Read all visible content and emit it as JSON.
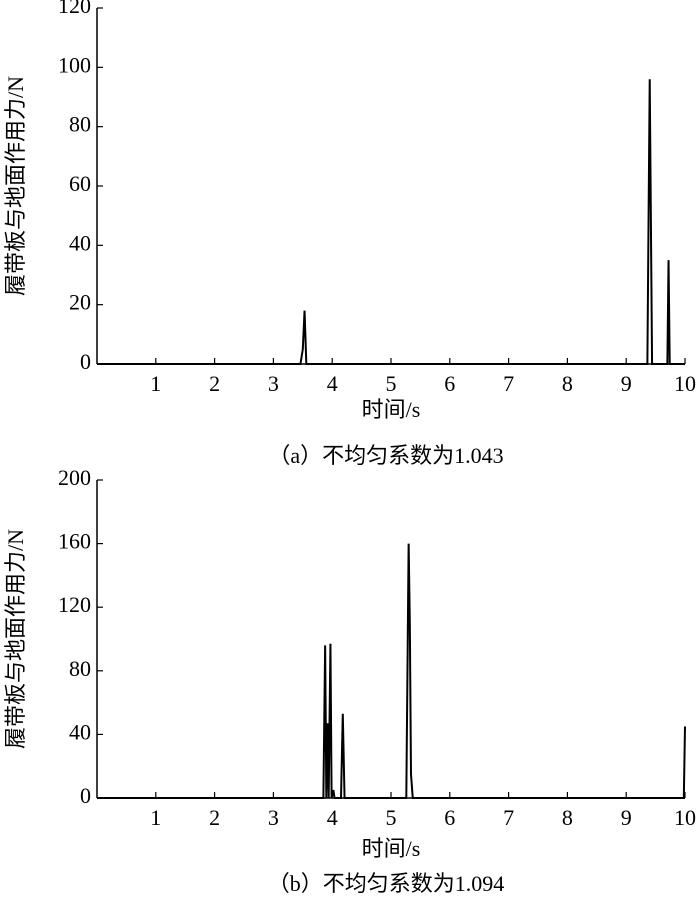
{
  "chart_data": [
    {
      "type": "line",
      "caption": "（a）不均匀系数为1.043",
      "x_label": "时间/s",
      "y_label": "履带板与地面作用力/N",
      "xlim": [
        0,
        10
      ],
      "xticks": [
        1,
        2,
        3,
        4,
        5,
        6,
        7,
        8,
        9,
        10
      ],
      "ylim": [
        0,
        120
      ],
      "yticks": [
        0,
        20,
        40,
        60,
        80,
        100,
        120
      ],
      "series": [
        {
          "color": "#000000",
          "x": [
            0,
            3.46,
            3.5,
            3.53,
            3.56,
            9.36,
            9.4,
            9.44,
            9.7,
            9.72,
            9.74,
            10
          ],
          "values": [
            0,
            0,
            5,
            18,
            0,
            0,
            96,
            0,
            0,
            35,
            0,
            0
          ]
        }
      ]
    },
    {
      "type": "line",
      "caption": "（b）不均匀系数为1.094",
      "x_label": "时间/s",
      "y_label": "履带板与地面作用力/N",
      "xlim": [
        0,
        10
      ],
      "xticks": [
        1,
        2,
        3,
        4,
        5,
        6,
        7,
        8,
        9,
        10
      ],
      "ylim": [
        0,
        200
      ],
      "yticks": [
        0,
        40,
        80,
        120,
        160,
        200
      ],
      "series": [
        {
          "color": "#000000",
          "x": [
            0,
            3.85,
            3.88,
            3.9,
            3.92,
            3.94,
            3.97,
            3.99,
            4.02,
            4.04,
            4.15,
            4.18,
            4.21,
            5.26,
            5.3,
            5.32,
            5.34,
            5.37,
            9.98,
            10
          ],
          "values": [
            0,
            0,
            96,
            0,
            47,
            0,
            97,
            0,
            5,
            0,
            0,
            53,
            0,
            0,
            160,
            110,
            15,
            0,
            0,
            45
          ]
        }
      ]
    }
  ]
}
